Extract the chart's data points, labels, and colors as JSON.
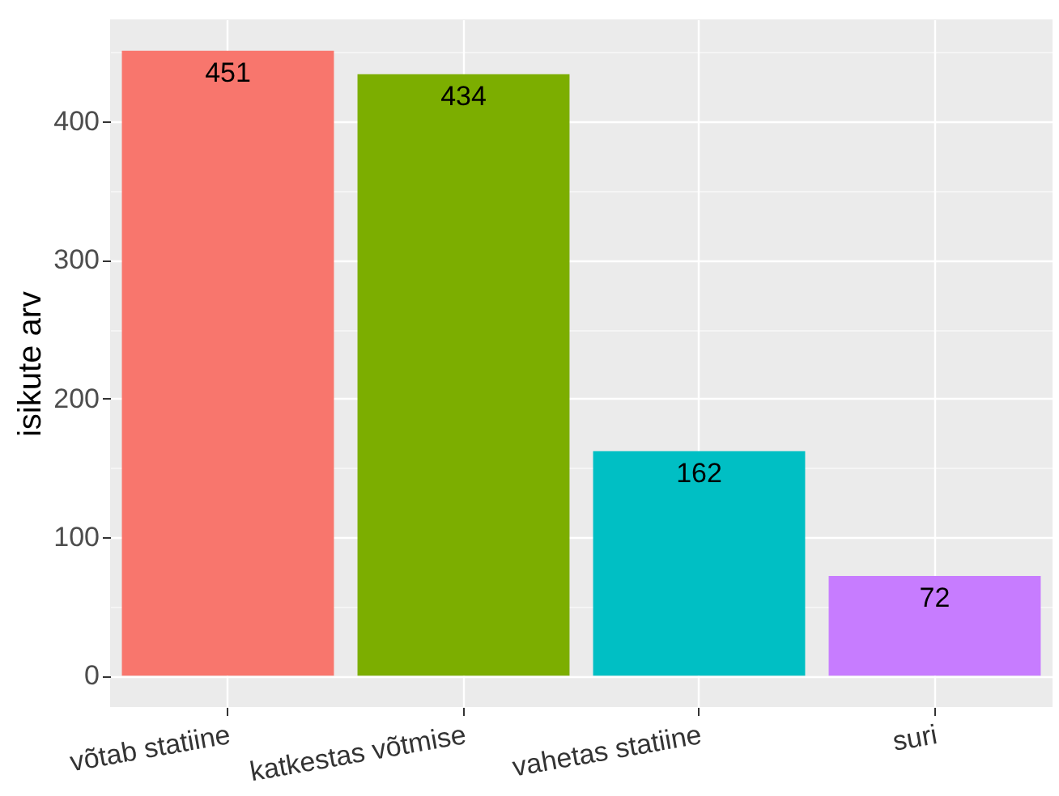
{
  "chart_data": {
    "type": "bar",
    "ylabel": "isikute arv",
    "categories": [
      "võtab statiine",
      "katkestas võtmise",
      "vahetas statiine",
      "suri"
    ],
    "values": [
      451,
      434,
      162,
      72
    ],
    "colors": [
      "#f8766d",
      "#7cae00",
      "#00bfc4",
      "#c77cff"
    ],
    "ylim": [
      -22.55,
      473.55
    ],
    "yticks": [
      0,
      {
        "value": 50,
        "label": null
      },
      100,
      {
        "value": 150,
        "label": null
      },
      200,
      {
        "value": 250,
        "label": null
      },
      300,
      {
        "value": 350,
        "label": null
      },
      400,
      {
        "value": 450,
        "label": null
      }
    ],
    "grid": true,
    "data_labels": true
  }
}
